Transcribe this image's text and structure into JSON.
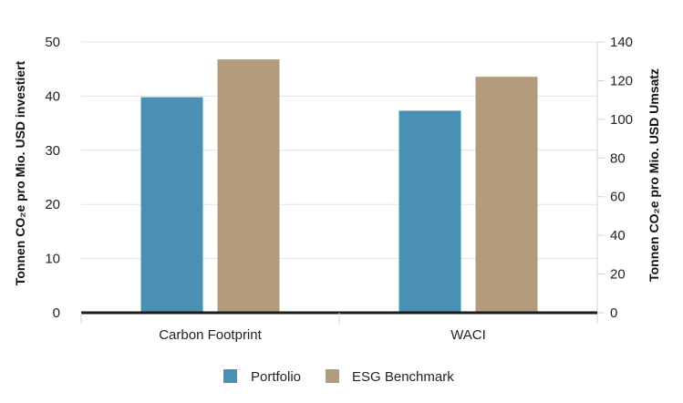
{
  "chart_data": {
    "type": "bar",
    "categories": [
      "Carbon Footprint",
      "WACI"
    ],
    "series": [
      {
        "name": "Portfolio",
        "axis": "left",
        "values": [
          39.8,
          37.3
        ],
        "color": "#4a90b2"
      },
      {
        "name": "ESG Benchmark",
        "axis": "right",
        "values": [
          131,
          122
        ],
        "color": "#b59b7e"
      }
    ],
    "y_left": {
      "label": "Tonnen CO₂e pro Mio. USD investiert",
      "ylim": [
        0,
        50
      ],
      "ticks": [
        0,
        10,
        20,
        30,
        40,
        50
      ]
    },
    "y_right": {
      "label": "Tonnen CO₂e pro Mio. USD Umsatz",
      "ylim": [
        0,
        140
      ],
      "ticks": [
        0,
        20,
        40,
        60,
        80,
        100,
        120,
        140
      ]
    },
    "grid": true,
    "legend_position": "bottom-center"
  }
}
